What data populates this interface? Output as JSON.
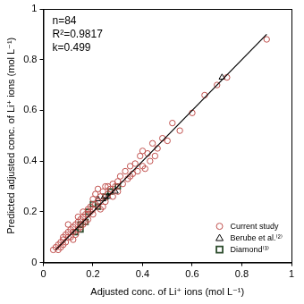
{
  "chart_data": {
    "type": "scatter",
    "x_label": "Adjusted conc. of Li⁺ ions (mol L⁻¹)",
    "y_label": "Predicted adjusted conc. of Li⁺ ions (mol L⁻¹)",
    "annotations": [
      "n=84",
      "R²=0.9817",
      "k=0.499"
    ],
    "xlim": [
      0,
      1
    ],
    "ylim": [
      0,
      1
    ],
    "xticks": [
      0,
      0.2,
      0.4,
      0.6,
      0.8,
      1
    ],
    "yticks": [
      0,
      0.2,
      0.4,
      0.6,
      0.8,
      1
    ],
    "grid": false,
    "legend": "lower right",
    "series": [
      {
        "name": "Current study",
        "color": "#c0504d",
        "marker": "circle",
        "x": [
          0.05,
          0.06,
          0.07,
          0.07,
          0.08,
          0.08,
          0.09,
          0.09,
          0.1,
          0.1,
          0.11,
          0.11,
          0.12,
          0.12,
          0.13,
          0.13,
          0.14,
          0.14,
          0.15,
          0.15,
          0.16,
          0.16,
          0.17,
          0.17,
          0.18,
          0.18,
          0.19,
          0.19,
          0.2,
          0.2,
          0.21,
          0.21,
          0.22,
          0.22,
          0.23,
          0.23,
          0.24,
          0.25,
          0.25,
          0.26,
          0.27,
          0.28,
          0.29,
          0.3,
          0.31,
          0.32,
          0.33,
          0.34,
          0.35,
          0.36,
          0.37,
          0.38,
          0.39,
          0.4,
          0.4,
          0.42,
          0.43,
          0.44,
          0.45,
          0.46,
          0.48,
          0.5,
          0.52,
          0.55,
          0.6,
          0.65,
          0.7,
          0.74,
          0.9,
          0.04,
          0.06,
          0.1,
          0.14,
          0.24,
          0.26,
          0.28,
          0.12,
          0.18,
          0.2,
          0.16,
          0.08,
          0.35,
          0.41,
          0.3
        ],
        "values": [
          0.06,
          0.07,
          0.08,
          0.06,
          0.09,
          0.1,
          0.08,
          0.11,
          0.1,
          0.12,
          0.13,
          0.1,
          0.14,
          0.12,
          0.15,
          0.11,
          0.13,
          0.16,
          0.17,
          0.14,
          0.15,
          0.18,
          0.19,
          0.16,
          0.21,
          0.17,
          0.22,
          0.2,
          0.25,
          0.21,
          0.23,
          0.27,
          0.24,
          0.29,
          0.26,
          0.21,
          0.28,
          0.3,
          0.24,
          0.27,
          0.29,
          0.31,
          0.3,
          0.32,
          0.34,
          0.31,
          0.36,
          0.33,
          0.38,
          0.35,
          0.39,
          0.36,
          0.42,
          0.44,
          0.38,
          0.43,
          0.4,
          0.47,
          0.42,
          0.45,
          0.49,
          0.48,
          0.55,
          0.52,
          0.59,
          0.66,
          0.7,
          0.73,
          0.88,
          0.05,
          0.05,
          0.15,
          0.18,
          0.22,
          0.3,
          0.26,
          0.09,
          0.19,
          0.19,
          0.2,
          0.07,
          0.34,
          0.37,
          0.28
        ]
      },
      {
        "name": "Berube et al.⁽²⁾",
        "color": "#000000",
        "marker": "triangle",
        "x": [
          0.22,
          0.24,
          0.26,
          0.29,
          0.72
        ],
        "values": [
          0.25,
          0.25,
          0.26,
          0.28,
          0.73
        ]
      },
      {
        "name": "Diamond⁽³⁾",
        "color": "#2e4d2e",
        "marker": "square",
        "x": [
          0.13,
          0.15,
          0.15,
          0.17,
          0.18,
          0.2,
          0.22,
          0.25,
          0.27,
          0.3
        ],
        "values": [
          0.12,
          0.13,
          0.15,
          0.16,
          0.2,
          0.23,
          0.22,
          0.26,
          0.28,
          0.3
        ]
      },
      {
        "type": "line",
        "color": "#000000",
        "line_style": "solid",
        "x": [
          0.05,
          0.9
        ],
        "values": [
          0.05,
          0.9
        ]
      }
    ]
  }
}
